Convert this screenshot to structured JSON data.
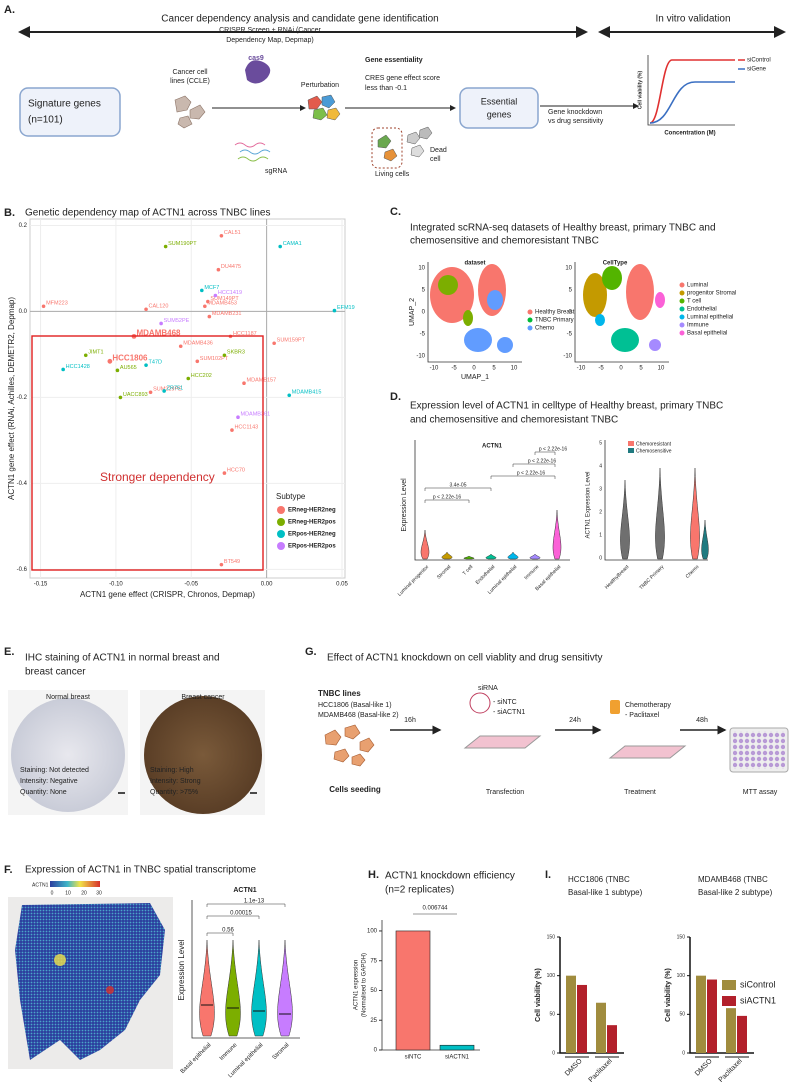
{
  "panel_a": {
    "label": "A.",
    "header_left": "Cancer dependency analysis and candidate gene identification",
    "header_right": "In vitro validation",
    "signature_box": [
      "Signature genes",
      "(n=101)"
    ],
    "cell_lines": [
      "Cancer cell",
      "lines (CCLE)"
    ],
    "crispr": [
      "CRISPR Screen + RNAi (Cancer",
      "Dependency Map, Depmap)"
    ],
    "cas9": "cas9",
    "sgrna": "sgRNA",
    "perturbation": "Perturbation",
    "essentiality": [
      "Gene essentiality",
      "CRES gene effect score",
      "less than -0.1"
    ],
    "essential_box": [
      "Essential",
      "genes"
    ],
    "dead": [
      "Dead",
      "cell"
    ],
    "living": "Living cells",
    "knockdown": [
      "Gene knockdown",
      "vs drug sensitivity"
    ],
    "mini_chart": {
      "y_label": "Cell viability (%)",
      "x_label": "Concentration (M)",
      "legend": [
        "siControl",
        "siGene"
      ]
    }
  },
  "panel_b": {
    "label": "B.",
    "title": "Genetic dependency map of ACTN1 across TNBC lines",
    "annotation": "Stronger dependency",
    "chart_data": {
      "type": "scatter",
      "x_label": "ACTN1 gene effect (CRISPR, Chronos, Depmap)",
      "y_label": "ACTN1 gene effect (RNAi, Achilles, DEMETR2, Depmap)",
      "xlim": [
        -0.157,
        0.052
      ],
      "ylim": [
        -0.62,
        0.215
      ],
      "xticks": [
        -0.15,
        {
          "value": -0.1,
          "label": "-0.10"
        },
        -0.05,
        {
          "value": 0,
          "label": "0.00"
        },
        0.05
      ],
      "yticks": [
        0.2,
        {
          "value": 0,
          "label": "0.0"
        },
        -0.2,
        -0.4,
        -0.6
      ],
      "legend_title": "Subtype",
      "series": [
        {
          "name": "ERneg-HER2neg",
          "color": "#f8766d",
          "emphasis": [
            7,
            11
          ],
          "labels": [
            "MFM223",
            "CAL51",
            "DU4475",
            "SUM149PT",
            "MDAMB453",
            "CAL120",
            "MDAMB231",
            "MDAMB468",
            "HCC1187",
            "MDAMB436",
            "SUM159PT",
            "HCC1806",
            "SUM102PT",
            "MDAMB157",
            "SUM229PE",
            "HCC1143",
            "HCC70",
            "BT549"
          ],
          "x": [
            -0.148,
            -0.03,
            -0.032,
            -0.039,
            -0.041,
            -0.08,
            -0.038,
            -0.088,
            -0.024,
            -0.057,
            0.005,
            -0.104,
            -0.046,
            -0.015,
            -0.077,
            -0.023,
            -0.028,
            -0.03
          ],
          "values": [
            0.012,
            0.176,
            0.097,
            0.023,
            0.012,
            0.005,
            -0.012,
            -0.058,
            -0.058,
            -0.081,
            -0.074,
            -0.116,
            -0.116,
            -0.167,
            -0.188,
            -0.276,
            -0.376,
            -0.589
          ]
        },
        {
          "name": "ERneg-HER2pos",
          "color": "#7cae00",
          "labels": [
            "SUM190PT",
            "SKBR3",
            "JIMT1",
            "AU565",
            "HCC202",
            "UACC893"
          ],
          "x": [
            -0.067,
            -0.028,
            -0.12,
            -0.099,
            -0.052,
            -0.097
          ],
          "values": [
            0.151,
            -0.102,
            -0.102,
            -0.137,
            -0.156,
            -0.2
          ]
        },
        {
          "name": "ERpos-HER2neg",
          "color": "#00bfc4",
          "labels": [
            "CAMA1",
            "EFM19",
            "MCF7",
            "T47D",
            "HCC1428",
            "MDAMB415",
            "ZR751"
          ],
          "x": [
            0.009,
            0.045,
            -0.043,
            -0.08,
            -0.135,
            0.015,
            -0.068
          ],
          "values": [
            0.151,
            0.002,
            0.049,
            -0.125,
            -0.135,
            -0.195,
            -0.185
          ]
        },
        {
          "name": "ERpos-HER2pos",
          "color": "#c77cff",
          "labels": [
            "HCC1419",
            "SUM52PE",
            "MDAMB361"
          ],
          "x": [
            -0.034,
            -0.07,
            -0.019
          ],
          "values": [
            0.037,
            -0.028,
            -0.246
          ]
        }
      ]
    }
  },
  "panel_c": {
    "label": "C.",
    "title": [
      "Integrated scRNA-seq datasets of Healthy breast, primary TNBC and",
      "chemosensitive and chemoresistant TNBC"
    ],
    "left_title": "dataset",
    "right_title": "CellType",
    "x_axis": "UMAP_1",
    "y_axis": "UMAP_2",
    "x_ticks": [
      "-10",
      "-5",
      "0",
      "5",
      "10"
    ],
    "y_ticks": [
      "10",
      "5",
      "0",
      "-5",
      "-10"
    ],
    "dataset_legend": [
      "Healthy Breast",
      "TNBC  Primary",
      "Chemo"
    ],
    "celltype_legend": [
      "Luminal",
      "progenitor Stromal",
      "T cell",
      "Endothelial",
      "Luminal epithelial",
      "Immune",
      "Basal epithelial"
    ]
  },
  "panel_d": {
    "label": "D.",
    "title": [
      "Expression level of ACTN1 in celltype of Healthy breast, primary TNBC",
      "and chemosensitive and chemoresistant TNBC"
    ],
    "left_title": "ACTN1",
    "left_y": "Expression Level",
    "categories": [
      "Luminal progenitor",
      "Stromal",
      "T cell",
      "Endothelial",
      "Luminal epithelial",
      "Immune",
      "Basal epithelial"
    ],
    "pvalues": [
      "p < 2.22e-16",
      "p < 2.22e-16",
      "p < 2.22e-16",
      "3.4e-05",
      "p < 2.22e-16"
    ],
    "right_y": "ACTN1 Expression Level",
    "right_ticks": [
      "0",
      "1",
      "2",
      "3",
      "4",
      "5"
    ],
    "right_legend": [
      "Chemoresistant",
      "Chemosensitive"
    ],
    "right_categories": [
      "HealthyBreast",
      "TNBC Primary",
      "Chemo"
    ]
  },
  "panel_e": {
    "label": "E.",
    "title": [
      "IHC staining of ACTN1 in normal breast and",
      "breast cancer"
    ],
    "normal": {
      "title": "Normal breast",
      "lines": [
        "Staining: Not detected",
        "Intensity: Negative",
        "Quantity: None"
      ]
    },
    "cancer": {
      "title": "Breast cancer",
      "lines": [
        "Staining: High",
        "Intensity: Strong",
        "Quantity: >75%"
      ]
    }
  },
  "panel_f": {
    "label": "F.",
    "title": "Expression of ACTN1 in TNBC spatial transcriptome",
    "colorbar_title": "ACTN1",
    "colorbar_ticks": [
      "0",
      "10",
      "20",
      "30"
    ],
    "violin_title": "ACTN1",
    "y_label": "Expression Level",
    "categories": [
      "Basal epithelial",
      "Immune",
      "Luminal epithelial",
      "Stromal"
    ],
    "pvalues": [
      "0.56",
      "0.00015",
      "1.1e-13"
    ]
  },
  "panel_g": {
    "label": "G.",
    "title": "Effect of ACTN1 knockdown on cell viablity and drug sensitivty",
    "lines_title": "TNBC lines",
    "lines": [
      "HCC1806 (Basal-like 1)",
      "MDAMB468 (Basal-like 2)"
    ],
    "times": [
      "16h",
      "24h",
      "48h"
    ],
    "sirna": "siRNA",
    "sirna_items": [
      "- siNTC",
      "- siACTN1"
    ],
    "chemo": "Chemotherapy",
    "chemo_item": "- Paclitaxel",
    "steps": [
      "Cells seeding",
      "Transfection",
      "Treatment",
      "MTT assay"
    ]
  },
  "panel_h": {
    "label": "H.",
    "title": [
      "ACTN1 knockdown efficiency",
      "(n=2 replicates)"
    ],
    "chart_data": {
      "type": "bar",
      "y_label": [
        "ACTN1 expression",
        "(Normalised to GAPDH)"
      ],
      "categories": [
        "siNTC",
        "siACTN1"
      ],
      "values": [
        100,
        4
      ],
      "colors": [
        "#f8766d",
        "#00bfc4"
      ],
      "ylim": [
        0,
        105
      ],
      "yticks": [
        0,
        25,
        50,
        75,
        100
      ],
      "pvalue": "0.006744"
    }
  },
  "panel_i": {
    "label": "I.",
    "chart_data": [
      {
        "type": "bar",
        "title": [
          "HCC1806 (TNBC",
          "Basal-like 1 subtype)"
        ],
        "y_label": "Cell viability (%)",
        "categories": [
          "DMSO",
          "Paclitaxel"
        ],
        "ylim": [
          0,
          150
        ],
        "yticks": [
          0,
          50,
          100,
          150
        ],
        "series": [
          {
            "name": "siControl",
            "color": "#a08c3e",
            "values": [
              100,
              65
            ]
          },
          {
            "name": "siACTN1",
            "color": "#b2202b",
            "values": [
              88,
              36
            ]
          }
        ]
      },
      {
        "type": "bar",
        "title": [
          "MDAMB468 (TNBC",
          "Basal-like 2 subtype)"
        ],
        "y_label": "Cell viability (%)",
        "categories": [
          "DMSO",
          "Paclitaxel"
        ],
        "ylim": [
          0,
          150
        ],
        "yticks": [
          0,
          50,
          100,
          150
        ],
        "series": [
          {
            "name": "siControl",
            "color": "#a08c3e",
            "values": [
              100,
              58
            ]
          },
          {
            "name": "siACTN1",
            "color": "#b2202b",
            "values": [
              95,
              48
            ]
          }
        ]
      }
    ]
  }
}
